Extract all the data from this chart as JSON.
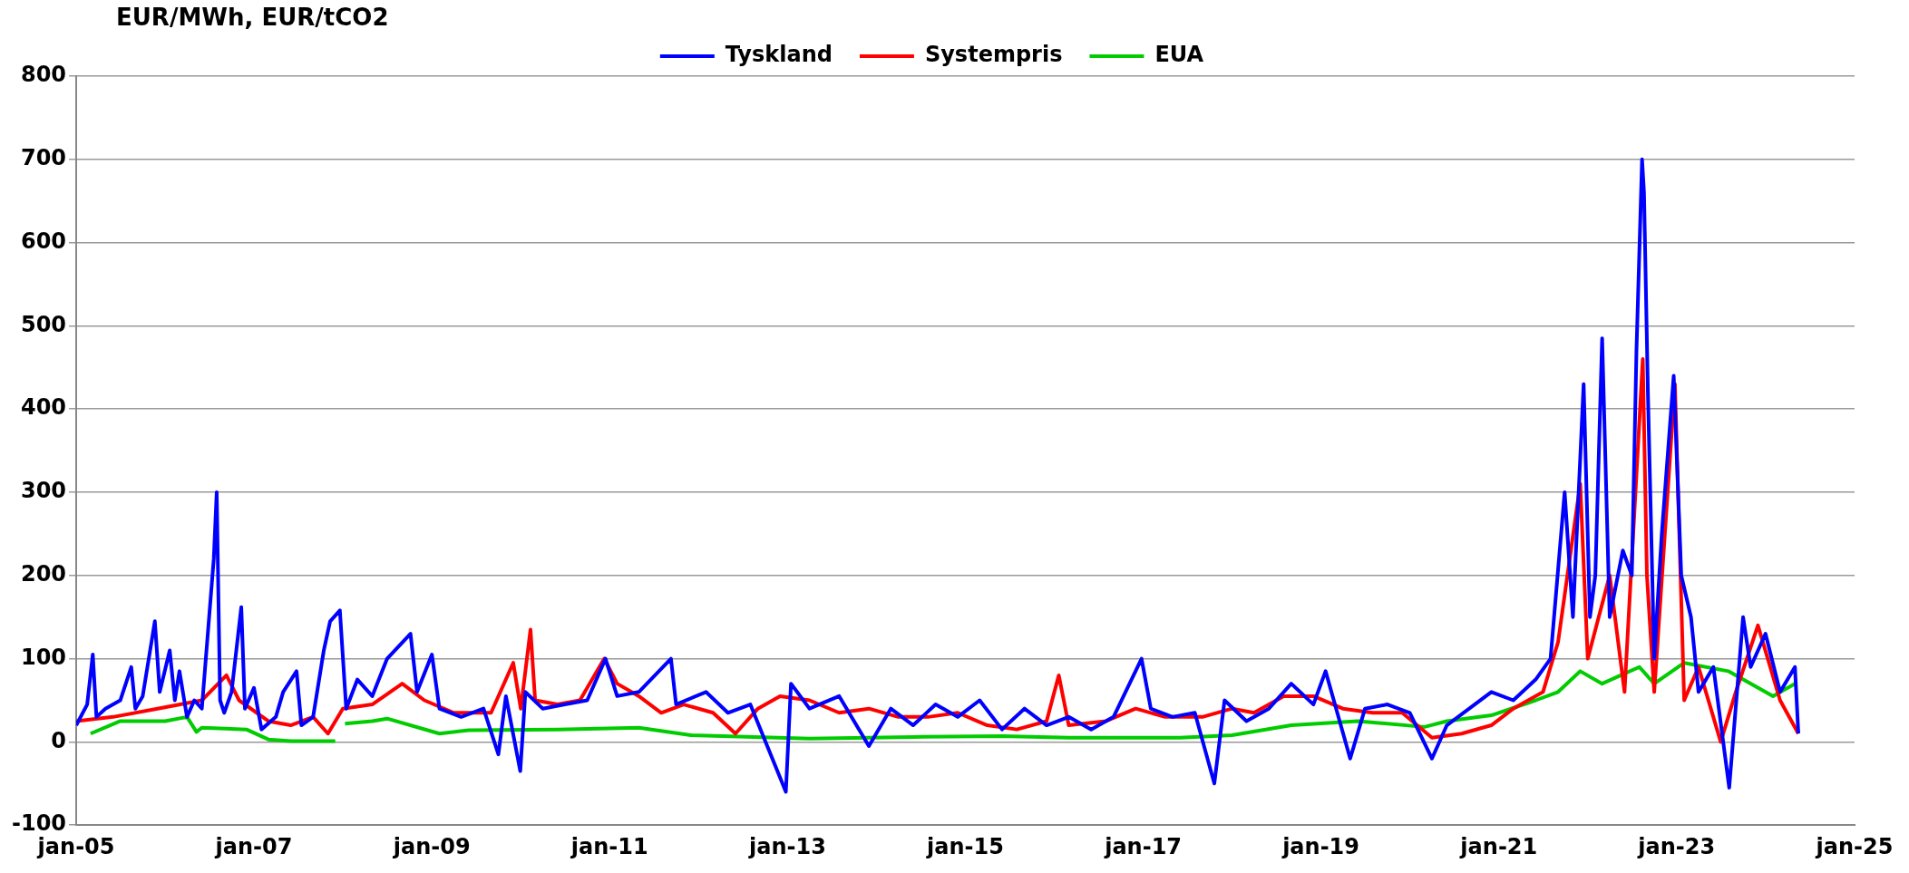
{
  "chart_data": {
    "type": "line",
    "ylabel": "EUR/MWh, EUR/tCO2",
    "xlim": [
      "2005-01-01",
      "2025-01-01"
    ],
    "xticks": [
      {
        "value": "2005-01-01",
        "label": "jan-05"
      },
      {
        "value": "2007-01-01",
        "label": "jan-07"
      },
      {
        "value": "2009-01-01",
        "label": "jan-09"
      },
      {
        "value": "2011-01-01",
        "label": "jan-11"
      },
      {
        "value": "2013-01-01",
        "label": "jan-13"
      },
      {
        "value": "2015-01-01",
        "label": "jan-15"
      },
      {
        "value": "2017-01-01",
        "label": "jan-17"
      },
      {
        "value": "2019-01-01",
        "label": "jan-19"
      },
      {
        "value": "2021-01-01",
        "label": "jan-21"
      },
      {
        "value": "2023-01-01",
        "label": "jan-23"
      },
      {
        "value": "2025-01-01",
        "label": "jan-25"
      }
    ],
    "ylim": [
      -100,
      800
    ],
    "yticks": [
      -100,
      0,
      100,
      200,
      300,
      400,
      500,
      600,
      700,
      800
    ],
    "grid": "y",
    "legend": "top",
    "marker": "none",
    "line_style": "solid",
    "series": [
      {
        "name": "Tyskland",
        "color": "#0000ff",
        "x": [
          "2005-01-01",
          "2005-02-15",
          "2005-03-10",
          "2005-03-25",
          "2005-05-01",
          "2005-07-01",
          "2005-08-15",
          "2005-09-01",
          "2005-10-01",
          "2005-11-20",
          "2005-12-10",
          "2006-01-20",
          "2006-02-10",
          "2006-03-01",
          "2006-04-01",
          "2006-05-01",
          "2006-06-01",
          "2006-07-20",
          "2006-08-01",
          "2006-08-15",
          "2006-09-01",
          "2006-10-01",
          "2006-11-10",
          "2006-11-25",
          "2007-01-01",
          "2007-02-01",
          "2007-04-01",
          "2007-05-01",
          "2007-06-25",
          "2007-07-15",
          "2007-09-01",
          "2007-10-15",
          "2007-11-10",
          "2007-12-20",
          "2008-01-15",
          "2008-03-01",
          "2008-05-01",
          "2008-07-01",
          "2008-10-05",
          "2008-11-01",
          "2009-01-01",
          "2009-02-01",
          "2009-05-01",
          "2009-08-01",
          "2009-10-01",
          "2009-11-01",
          "2009-12-30",
          "2010-01-20",
          "2010-04-01",
          "2010-07-01",
          "2010-10-01",
          "2010-12-15",
          "2011-02-01",
          "2011-05-01",
          "2011-09-10",
          "2011-10-01",
          "2012-02-01",
          "2012-05-01",
          "2012-08-01",
          "2012-12-25",
          "2013-01-15",
          "2013-04-01",
          "2013-08-01",
          "2013-12-01",
          "2014-03-01",
          "2014-06-01",
          "2014-09-01",
          "2014-12-01",
          "2015-03-01",
          "2015-06-01",
          "2015-09-01",
          "2015-12-01",
          "2016-03-01",
          "2016-06-01",
          "2016-09-01",
          "2016-12-25",
          "2017-02-01",
          "2017-05-01",
          "2017-08-01",
          "2017-10-20",
          "2017-12-01",
          "2018-03-01",
          "2018-06-01",
          "2018-09-01",
          "2018-12-01",
          "2019-01-20",
          "2019-05-01",
          "2019-07-01",
          "2019-10-01",
          "2020-01-01",
          "2020-04-01",
          "2020-06-01",
          "2020-09-01",
          "2020-12-01",
          "2021-03-01",
          "2021-06-01",
          "2021-08-01",
          "2021-09-28",
          "2021-11-01",
          "2021-12-15",
          "2022-01-10",
          "2022-02-01",
          "2022-03-01",
          "2022-04-01",
          "2022-05-25",
          "2022-07-01",
          "2022-07-20",
          "2022-08-12",
          "2022-08-20",
          "2022-09-05",
          "2022-10-01",
          "2022-11-01",
          "2022-12-20",
          "2023-01-20",
          "2023-03-01",
          "2023-04-01",
          "2023-06-01",
          "2023-08-05",
          "2023-10-01",
          "2023-11-01",
          "2024-01-01",
          "2024-03-01",
          "2024-05-01",
          "2024-05-15"
        ],
        "values": [
          20,
          45,
          105,
          30,
          40,
          50,
          90,
          40,
          55,
          145,
          60,
          110,
          50,
          85,
          30,
          50,
          40,
          220,
          300,
          50,
          35,
          60,
          162,
          40,
          65,
          15,
          30,
          60,
          85,
          20,
          30,
          110,
          145,
          158,
          40,
          75,
          55,
          100,
          130,
          60,
          105,
          40,
          30,
          40,
          -15,
          55,
          -35,
          60,
          40,
          45,
          50,
          100,
          55,
          60,
          100,
          45,
          60,
          35,
          45,
          -60,
          70,
          40,
          55,
          -5,
          40,
          20,
          45,
          30,
          50,
          15,
          40,
          20,
          30,
          15,
          30,
          100,
          40,
          30,
          35,
          -50,
          50,
          25,
          40,
          70,
          45,
          85,
          -20,
          40,
          45,
          35,
          -20,
          20,
          40,
          60,
          50,
          75,
          100,
          300,
          150,
          430,
          150,
          200,
          485,
          150,
          230,
          200,
          470,
          700,
          660,
          420,
          100,
          250,
          440,
          200,
          150,
          60,
          90,
          -55,
          150,
          90,
          130,
          60,
          90,
          10
        ]
      },
      {
        "name": "Systempris",
        "color": "#ff0000",
        "x": [
          "2005-01-01",
          "2005-06-01",
          "2005-12-01",
          "2006-06-01",
          "2006-09-10",
          "2006-11-01",
          "2007-03-01",
          "2007-06-01",
          "2007-09-01",
          "2007-11-01",
          "2008-01-01",
          "2008-05-01",
          "2008-09-01",
          "2008-12-01",
          "2009-04-01",
          "2009-09-01",
          "2009-12-01",
          "2010-01-01",
          "2010-02-10",
          "2010-03-01",
          "2010-06-01",
          "2010-09-01",
          "2010-12-10",
          "2011-02-01",
          "2011-05-01",
          "2011-08-01",
          "2011-11-01",
          "2012-03-01",
          "2012-06-01",
          "2012-09-01",
          "2012-12-01",
          "2013-04-01",
          "2013-08-01",
          "2013-12-01",
          "2014-04-01",
          "2014-08-01",
          "2014-12-01",
          "2015-04-01",
          "2015-08-01",
          "2015-12-01",
          "2016-01-20",
          "2016-03-01",
          "2016-08-01",
          "2016-12-01",
          "2017-04-01",
          "2017-09-01",
          "2018-01-01",
          "2018-04-01",
          "2018-08-01",
          "2018-12-01",
          "2019-04-01",
          "2019-08-01",
          "2019-12-01",
          "2020-04-01",
          "2020-08-01",
          "2020-12-01",
          "2021-03-01",
          "2021-07-01",
          "2021-09-01",
          "2021-12-01",
          "2022-01-01",
          "2022-04-01",
          "2022-06-01",
          "2022-08-15",
          "2022-09-01",
          "2022-10-01",
          "2022-12-25",
          "2023-02-01",
          "2023-04-01",
          "2023-07-01",
          "2023-09-01",
          "2023-12-01",
          "2024-03-01",
          "2024-05-15"
        ],
        "values": [
          25,
          30,
          40,
          50,
          80,
          50,
          25,
          20,
          30,
          10,
          40,
          45,
          70,
          50,
          35,
          35,
          95,
          40,
          135,
          50,
          45,
          50,
          100,
          70,
          55,
          35,
          45,
          35,
          10,
          40,
          55,
          50,
          35,
          40,
          30,
          30,
          35,
          20,
          15,
          25,
          80,
          20,
          25,
          40,
          30,
          30,
          40,
          35,
          55,
          55,
          40,
          35,
          35,
          5,
          10,
          20,
          40,
          60,
          120,
          310,
          100,
          200,
          60,
          460,
          200,
          60,
          430,
          50,
          90,
          0,
          60,
          140,
          50,
          10
        ]
      },
      {
        "name": "EUA",
        "color": "#00cc00",
        "x": [
          "2005-03-01",
          "2005-07-01",
          "2006-01-01",
          "2006-04-01",
          "2006-05-10",
          "2006-06-01",
          "2006-12-01",
          "2007-03-01",
          "2007-06-01",
          "2007-12-01",
          "2007-12-20",
          "2008-01-10",
          "2008-05-01",
          "2008-07-01",
          "2009-02-01",
          "2009-06-01",
          "2010-06-01",
          "2011-05-01",
          "2011-12-01",
          "2013-04-01",
          "2014-06-01",
          "2015-06-01",
          "2016-03-01",
          "2017-06-01",
          "2018-01-01",
          "2018-09-01",
          "2019-06-01",
          "2020-03-01",
          "2020-06-01",
          "2020-12-01",
          "2021-06-01",
          "2021-09-01",
          "2021-12-01",
          "2022-03-01",
          "2022-08-01",
          "2022-10-01",
          "2023-02-01",
          "2023-08-01",
          "2024-02-01",
          "2024-05-01"
        ],
        "values": [
          10,
          25,
          25,
          30,
          12,
          17,
          15,
          3,
          1,
          1,
          null,
          22,
          25,
          28,
          10,
          14,
          15,
          17,
          8,
          4,
          6,
          7,
          5,
          5,
          8,
          20,
          25,
          18,
          25,
          32,
          50,
          60,
          85,
          70,
          90,
          70,
          95,
          85,
          55,
          70
        ]
      }
    ]
  }
}
